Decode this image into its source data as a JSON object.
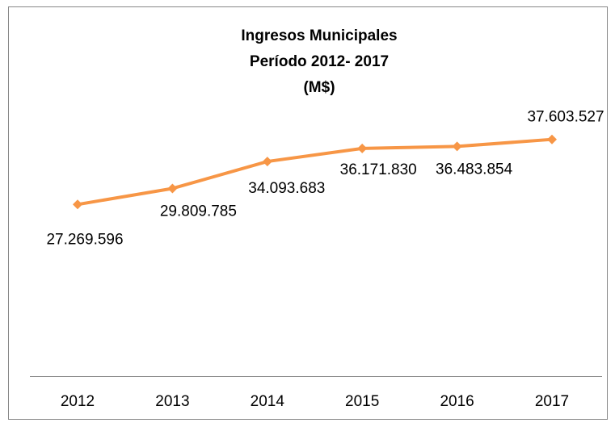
{
  "chart_data": {
    "type": "line",
    "title": [
      "Ingresos Municipales",
      "Período 2012- 2017",
      "(M$)"
    ],
    "categories": [
      "2012",
      "2013",
      "2014",
      "2015",
      "2016",
      "2017"
    ],
    "values": [
      27269596,
      29809785,
      34093683,
      36171830,
      36483854,
      37603527
    ],
    "value_labels": [
      "27.269.596",
      "29.809.785",
      "34.093.683",
      "36.171.830",
      "36.483.854",
      "37.603.527"
    ],
    "color": "#f79646",
    "ylim": [
      0,
      40000000
    ]
  }
}
